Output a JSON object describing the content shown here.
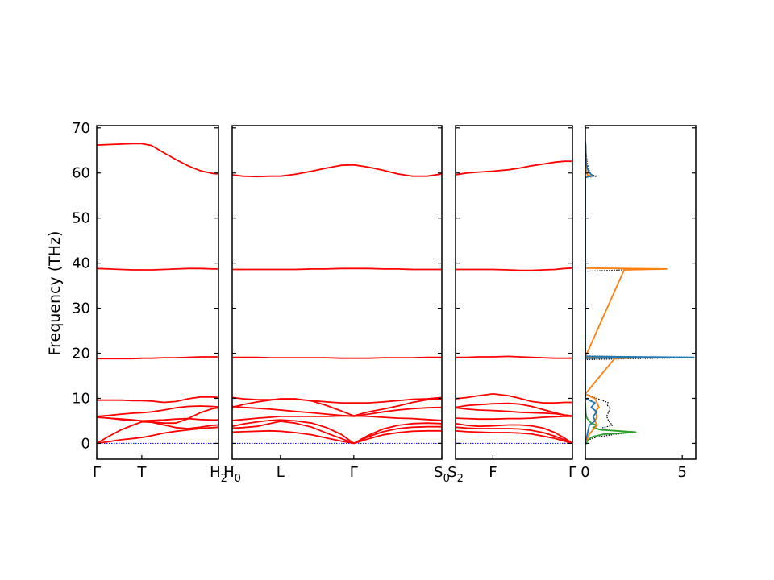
{
  "chart_data": {
    "type": "line",
    "title": "",
    "ylabel": "Frequency (THz)",
    "ylim": [
      -3.5,
      70.5
    ],
    "yticks": [
      0,
      10,
      20,
      30,
      40,
      50,
      60,
      70
    ],
    "grid": false,
    "colors": {
      "bands": "#ff0000",
      "zero_line": "#0000ff",
      "dos_total": "#000000",
      "dos_1": "#1f77b4",
      "dos_2": "#ff7f0e",
      "dos_3": "#2ca02c"
    },
    "panels": [
      {
        "id": "gamma-t-h2",
        "xlabels": [
          {
            "pos": 0.0,
            "text": "Γ"
          },
          {
            "pos": 0.37,
            "text": "T"
          },
          {
            "pos": 1.0,
            "text": "H",
            "sub": "2"
          }
        ],
        "x": [
          0,
          0.1,
          0.2,
          0.3,
          0.37,
          0.45,
          0.55,
          0.65,
          0.75,
          0.85,
          0.95,
          1.0
        ],
        "bands": [
          [
            66.2,
            66.3,
            66.4,
            66.5,
            66.5,
            66.1,
            64.5,
            63.0,
            61.6,
            60.5,
            59.9,
            59.8
          ],
          [
            38.8,
            38.7,
            38.6,
            38.5,
            38.5,
            38.5,
            38.6,
            38.7,
            38.8,
            38.8,
            38.7,
            38.7
          ],
          [
            18.8,
            18.8,
            18.8,
            18.8,
            18.9,
            18.9,
            19.0,
            19.0,
            19.1,
            19.2,
            19.2,
            19.2
          ],
          [
            9.6,
            9.6,
            9.6,
            9.5,
            9.5,
            9.4,
            9.1,
            9.3,
            9.9,
            10.3,
            10.3,
            10.2
          ],
          [
            6.0,
            6.2,
            6.5,
            6.7,
            6.8,
            7.0,
            7.4,
            7.9,
            8.2,
            8.3,
            8.2,
            8.1
          ],
          [
            5.9,
            5.6,
            5.3,
            5.1,
            5.0,
            5.1,
            5.2,
            5.4,
            5.5,
            5.3,
            5.2,
            5.2
          ],
          [
            5.8,
            5.6,
            5.4,
            5.2,
            5.0,
            4.8,
            4.5,
            4.5,
            5.5,
            6.8,
            7.7,
            7.9
          ],
          [
            0.0,
            1.6,
            3.0,
            4.1,
            4.8,
            4.7,
            4.1,
            3.5,
            3.3,
            3.6,
            4.0,
            4.1
          ],
          [
            0.0,
            0.4,
            0.8,
            1.1,
            1.3,
            1.7,
            2.3,
            2.7,
            3.0,
            3.3,
            3.5,
            3.6
          ]
        ]
      },
      {
        "id": "h0-l-gamma-s0",
        "xlabels": [
          {
            "pos": 0.0,
            "text": "H",
            "sub": "0"
          },
          {
            "pos": 0.23,
            "text": "L"
          },
          {
            "pos": 0.58,
            "text": "Γ"
          },
          {
            "pos": 1.0,
            "text": "S",
            "sub": "0"
          }
        ],
        "x": [
          0,
          0.05,
          0.12,
          0.18,
          0.23,
          0.3,
          0.38,
          0.45,
          0.52,
          0.58,
          0.65,
          0.72,
          0.79,
          0.86,
          0.93,
          1.0
        ],
        "bands": [
          [
            59.6,
            59.3,
            59.2,
            59.3,
            59.3,
            59.7,
            60.4,
            61.1,
            61.7,
            61.8,
            61.3,
            60.6,
            59.8,
            59.3,
            59.3,
            59.8
          ],
          [
            38.6,
            38.6,
            38.6,
            38.6,
            38.6,
            38.6,
            38.7,
            38.7,
            38.8,
            38.8,
            38.8,
            38.7,
            38.7,
            38.6,
            38.6,
            38.6
          ],
          [
            19.1,
            19.1,
            19.1,
            19.0,
            19.0,
            19.0,
            19.0,
            19.0,
            18.9,
            18.9,
            18.9,
            19.0,
            19.0,
            19.0,
            19.1,
            19.1
          ],
          [
            10.2,
            9.9,
            9.7,
            9.7,
            9.8,
            9.8,
            9.5,
            9.2,
            9.0,
            9.0,
            9.0,
            9.2,
            9.5,
            9.8,
            9.9,
            10.2
          ],
          [
            8.0,
            8.6,
            9.2,
            9.6,
            9.9,
            9.9,
            9.4,
            8.4,
            7.2,
            6.1,
            7.0,
            7.6,
            8.3,
            9.1,
            9.7,
            9.9
          ],
          [
            8.2,
            8.0,
            7.8,
            7.6,
            7.4,
            7.1,
            6.8,
            6.5,
            6.2,
            6.0,
            6.5,
            7.0,
            7.4,
            7.7,
            7.9,
            8.0
          ],
          [
            5.1,
            5.3,
            5.6,
            5.8,
            6.0,
            6.0,
            6.0,
            6.0,
            6.1,
            6.1,
            6.0,
            5.8,
            5.6,
            5.5,
            5.3,
            5.1
          ],
          [
            3.8,
            4.3,
            4.8,
            5.1,
            5.2,
            5.0,
            4.5,
            3.5,
            2.0,
            0.0,
            1.8,
            3.2,
            4.0,
            4.4,
            4.5,
            4.4
          ],
          [
            3.4,
            3.5,
            3.8,
            4.4,
            4.9,
            4.5,
            3.6,
            2.3,
            1.1,
            0.0,
            1.5,
            2.6,
            3.3,
            3.6,
            3.7,
            3.7
          ],
          [
            2.5,
            2.6,
            2.7,
            2.8,
            2.7,
            2.4,
            1.9,
            1.2,
            0.5,
            0.0,
            1.0,
            1.9,
            2.4,
            2.7,
            2.8,
            2.8
          ]
        ]
      },
      {
        "id": "s2-f-gamma",
        "xlabels": [
          {
            "pos": 0.0,
            "text": "S",
            "sub": "2"
          },
          {
            "pos": 0.32,
            "text": "F"
          },
          {
            "pos": 1.0,
            "text": "Γ"
          }
        ],
        "x": [
          0,
          0.1,
          0.2,
          0.32,
          0.45,
          0.55,
          0.65,
          0.75,
          0.85,
          0.93,
          1.0
        ],
        "bands": [
          [
            59.6,
            60.0,
            60.2,
            60.4,
            60.7,
            61.1,
            61.6,
            62.0,
            62.4,
            62.6,
            62.6
          ],
          [
            38.6,
            38.6,
            38.6,
            38.6,
            38.5,
            38.4,
            38.4,
            38.5,
            38.6,
            38.8,
            38.9
          ],
          [
            19.1,
            19.1,
            19.2,
            19.2,
            19.3,
            19.2,
            19.1,
            19.0,
            18.9,
            18.9,
            18.9
          ],
          [
            9.9,
            10.2,
            10.6,
            11.0,
            10.6,
            10.0,
            9.3,
            9.0,
            9.0,
            9.1,
            9.1
          ],
          [
            8.0,
            8.4,
            8.6,
            8.8,
            8.9,
            8.7,
            8.2,
            7.5,
            6.8,
            6.3,
            6.0
          ],
          [
            7.9,
            7.6,
            7.4,
            7.3,
            7.1,
            6.9,
            6.8,
            6.7,
            6.6,
            6.3,
            6.1
          ],
          [
            5.6,
            5.5,
            5.4,
            5.4,
            5.5,
            5.5,
            5.6,
            5.8,
            5.9,
            6.0,
            6.0
          ],
          [
            4.4,
            4.0,
            3.8,
            3.9,
            4.1,
            4.1,
            3.9,
            3.4,
            2.4,
            1.2,
            0.0
          ],
          [
            3.6,
            3.4,
            3.3,
            3.3,
            3.3,
            3.2,
            2.9,
            2.4,
            1.6,
            0.8,
            0.0
          ],
          [
            2.8,
            2.6,
            2.5,
            2.4,
            2.4,
            2.3,
            2.1,
            1.6,
            1.1,
            0.5,
            0.0
          ]
        ]
      }
    ],
    "dos": {
      "xlim": [
        0,
        5.7
      ],
      "xticks": [
        {
          "value": 0,
          "text": "0"
        },
        {
          "value": 5,
          "text": "5"
        }
      ],
      "series": [
        {
          "color_key": "dos_total",
          "style": "dotted",
          "f": [
            -0.3,
            0.2,
            0.5,
            0.7,
            1.0,
            1.4,
            2.0,
            2.5,
            3.0,
            3.5,
            4.0,
            5.0,
            6.0,
            7.0,
            8.0,
            8.5,
            9.0,
            9.5,
            10.0,
            10.5,
            11.0,
            18.6,
            18.8,
            19.0,
            19.2,
            19.4,
            38.2,
            38.5,
            38.7,
            38.9,
            59.0,
            59.3,
            59.6,
            60.5,
            62.0,
            64.0,
            66.0,
            67.0
          ],
          "d": [
            0,
            0.03,
            0.08,
            0.15,
            0.3,
            0.6,
            1.5,
            2.6,
            1.1,
            0.9,
            1.4,
            1.2,
            1.1,
            1.2,
            1.3,
            1.1,
            1.2,
            0.9,
            0.6,
            0.3,
            0,
            0,
            2.5,
            5.6,
            2.5,
            0,
            0,
            2.0,
            4.2,
            0,
            0,
            0.6,
            0.3,
            0.2,
            0.1,
            0.05,
            0.03,
            0
          ]
        },
        {
          "color_key": "dos_3",
          "style": "solid",
          "f": [
            -0.3,
            0.5,
            1.0,
            1.5,
            2.0,
            2.5,
            3.0,
            3.5,
            4.0,
            4.5,
            5.0,
            5.5,
            6.0,
            7.0,
            8.0,
            9.0
          ],
          "d": [
            0,
            0.1,
            0.2,
            0.4,
            0.9,
            2.6,
            0.8,
            0.4,
            0.6,
            0.3,
            0.2,
            0.1,
            0.05,
            0.02,
            0.01,
            0
          ]
        },
        {
          "color_key": "dos_2",
          "style": "solid",
          "f": [
            0.0,
            1.0,
            2.0,
            3.0,
            4.0,
            5.0,
            6.0,
            7.0,
            8.0,
            9.0,
            10.0,
            10.5,
            11.0,
            18.8,
            19.0,
            19.2,
            38.5,
            38.7,
            38.9,
            59.0,
            59.3,
            59.6,
            60.5,
            62.0
          ],
          "d": [
            0,
            0.1,
            0.2,
            0.4,
            0.6,
            0.5,
            0.6,
            0.5,
            0.7,
            0.6,
            0.5,
            0.2,
            0,
            1.5,
            2.6,
            0,
            2.0,
            4.2,
            0,
            0,
            0.3,
            0.1,
            0.05,
            0
          ]
        },
        {
          "color_key": "dos_1",
          "style": "solid",
          "f": [
            0.0,
            2.0,
            4.0,
            5.0,
            6.0,
            7.0,
            8.0,
            9.0,
            10.0,
            18.9,
            19.1,
            19.3,
            59.0,
            59.4,
            60.0,
            61.0,
            62.0,
            64.0,
            66.0,
            67.0
          ],
          "d": [
            0,
            0.1,
            0.2,
            0.5,
            0.4,
            0.6,
            0.3,
            0.5,
            0,
            0,
            5.6,
            0,
            0,
            0.4,
            0.2,
            0.1,
            0.05,
            0.03,
            0.02,
            0
          ]
        }
      ]
    }
  }
}
